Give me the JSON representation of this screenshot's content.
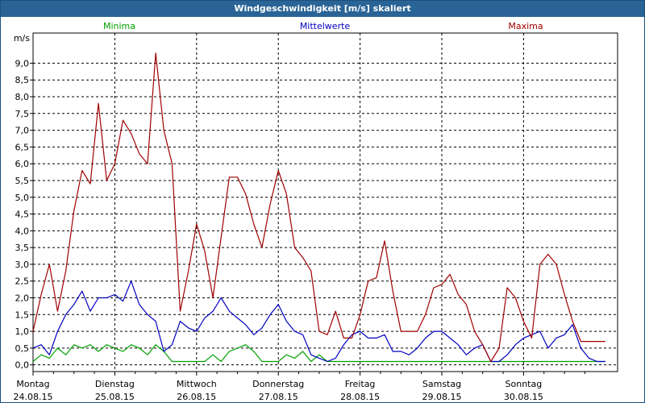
{
  "window": {
    "title": "Windgeschwindigkeit [m/s] skaliert"
  },
  "chart_data": {
    "type": "line",
    "title": "Windgeschwindigkeit [m/s] skaliert",
    "ylabel": "m/s",
    "xlabel": "",
    "ylim": [
      -0.2,
      9.9
    ],
    "yticks": [
      "0,0",
      "0,5",
      "1,0",
      "1,5",
      "2,0",
      "2,5",
      "3,0",
      "3,5",
      "4,0",
      "4,5",
      "5,0",
      "5,5",
      "6,0",
      "6,5",
      "7,0",
      "7,5",
      "8,0",
      "8,5",
      "9,0"
    ],
    "days": [
      {
        "name": "Montag",
        "date": "24.08.15"
      },
      {
        "name": "Dienstag",
        "date": "25.08.15"
      },
      {
        "name": "Mittwoch",
        "date": "26.08.15"
      },
      {
        "name": "Donnerstag",
        "date": "27.08.15"
      },
      {
        "name": "Freitag",
        "date": "28.08.15"
      },
      {
        "name": "Samstag",
        "date": "29.08.15"
      },
      {
        "name": "Sonntag",
        "date": "30.08.15"
      }
    ],
    "x": [
      0,
      0.1,
      0.2,
      0.3,
      0.4,
      0.5,
      0.6,
      0.7,
      0.8,
      0.9,
      1.0,
      1.1,
      1.2,
      1.3,
      1.4,
      1.5,
      1.6,
      1.7,
      1.8,
      1.9,
      2.0,
      2.1,
      2.2,
      2.3,
      2.4,
      2.5,
      2.6,
      2.7,
      2.8,
      2.9,
      3.0,
      3.1,
      3.2,
      3.3,
      3.4,
      3.5,
      3.6,
      3.7,
      3.8,
      3.9,
      4.0,
      4.1,
      4.2,
      4.3,
      4.4,
      4.5,
      4.6,
      4.7,
      4.8,
      4.9,
      5.0,
      5.1,
      5.2,
      5.3,
      5.4,
      5.5,
      5.6,
      5.7,
      5.8,
      5.9,
      6.0,
      6.1,
      6.2,
      6.3,
      6.4,
      6.5,
      6.6,
      6.7,
      6.8,
      6.9,
      7.0
    ],
    "grid": true,
    "legend_position": "top",
    "series": [
      {
        "name": "Minima",
        "color": "#00a000",
        "values": [
          0.1,
          0.3,
          0.2,
          0.5,
          0.3,
          0.6,
          0.5,
          0.6,
          0.4,
          0.6,
          0.5,
          0.4,
          0.6,
          0.5,
          0.3,
          0.6,
          0.4,
          0.1,
          0.1,
          0.1,
          0.1,
          0.1,
          0.3,
          0.1,
          0.4,
          0.5,
          0.6,
          0.4,
          0.1,
          0.1,
          0.1,
          0.3,
          0.2,
          0.4,
          0.1,
          0.3,
          0.1,
          0.1,
          0.1,
          0.1,
          0.1,
          0.1,
          0.1,
          0.1,
          0.1,
          0.1,
          0.1,
          0.1,
          0.1,
          0.1,
          0.1,
          0.1,
          0.1,
          0.1,
          0.1,
          0.1,
          0.1,
          0.1,
          0.1,
          0.1,
          0.1,
          0.1,
          0.1,
          0.1,
          0.1,
          0.1,
          0.1,
          0.1,
          0.1,
          0.1,
          0.1
        ]
      },
      {
        "name": "Mittelwerte",
        "color": "#0000c0",
        "values": [
          0.5,
          0.6,
          0.3,
          1.0,
          1.5,
          1.8,
          2.2,
          1.6,
          2.0,
          2.0,
          2.1,
          1.9,
          2.5,
          1.8,
          1.5,
          1.3,
          0.4,
          0.6,
          1.3,
          1.1,
          1.0,
          1.4,
          1.6,
          2.0,
          1.6,
          1.4,
          1.2,
          0.9,
          1.1,
          1.5,
          1.8,
          1.3,
          1.0,
          0.9,
          0.3,
          0.2,
          0.1,
          0.2,
          0.6,
          0.9,
          1.0,
          0.8,
          0.8,
          0.9,
          0.4,
          0.4,
          0.3,
          0.5,
          0.8,
          1.0,
          1.0,
          0.8,
          0.6,
          0.3,
          0.5,
          0.6,
          0.1,
          0.1,
          0.3,
          0.6,
          0.8,
          0.9,
          1.0,
          0.5,
          0.8,
          0.9,
          1.2,
          0.5,
          0.2,
          0.1,
          0.1
        ]
      },
      {
        "name": "Maxima",
        "color": "#a00000",
        "values": [
          1.0,
          2.1,
          3.0,
          1.6,
          2.8,
          4.6,
          5.8,
          5.4,
          7.8,
          5.5,
          6.0,
          7.3,
          6.9,
          6.3,
          6.0,
          9.3,
          7.0,
          6.0,
          1.6,
          2.8,
          4.2,
          3.4,
          2.0,
          3.8,
          5.6,
          5.6,
          5.1,
          4.2,
          3.5,
          4.8,
          5.8,
          5.1,
          3.5,
          3.2,
          2.8,
          1.0,
          0.9,
          1.6,
          0.8,
          0.8,
          1.5,
          2.5,
          2.6,
          3.7,
          2.2,
          1.0,
          1.0,
          1.0,
          1.5,
          2.3,
          2.4,
          2.7,
          2.1,
          1.8,
          1.0,
          0.6,
          0.1,
          0.5,
          2.3,
          2.0,
          1.3,
          0.8,
          3.0,
          3.3,
          3.0,
          2.1,
          1.3,
          0.7,
          0.7,
          0.7,
          0.7
        ]
      }
    ]
  }
}
